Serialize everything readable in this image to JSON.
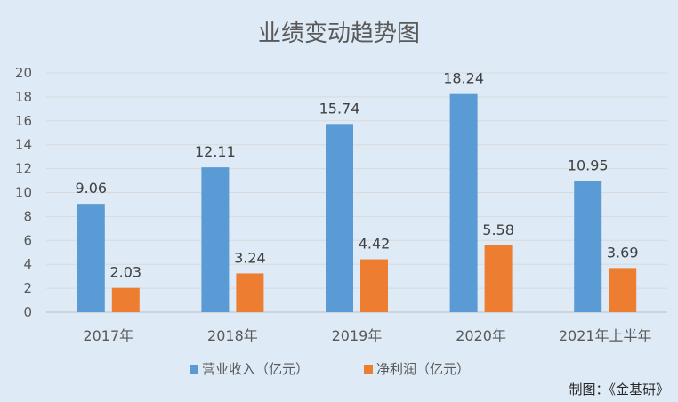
{
  "chart_data": {
    "type": "bar",
    "title": "业绩变动趋势图",
    "categories": [
      "2017年",
      "2018年",
      "2019年",
      "2020年",
      "2021年上半年"
    ],
    "series": [
      {
        "name": "营业收入（亿元）",
        "color": "#5B9BD5",
        "values": [
          9.06,
          12.11,
          15.74,
          18.24,
          10.95
        ]
      },
      {
        "name": "净利润（亿元）",
        "color": "#ED7D31",
        "values": [
          2.03,
          3.24,
          4.42,
          5.58,
          3.69
        ]
      }
    ],
    "ylim": [
      0,
      20
    ],
    "yticks": [
      0,
      2,
      4,
      6,
      8,
      10,
      12,
      14,
      16,
      18,
      20
    ],
    "grid": true,
    "legend": "bottom",
    "xlabel": "",
    "ylabel": ""
  },
  "credit": "制图：《金基研》"
}
